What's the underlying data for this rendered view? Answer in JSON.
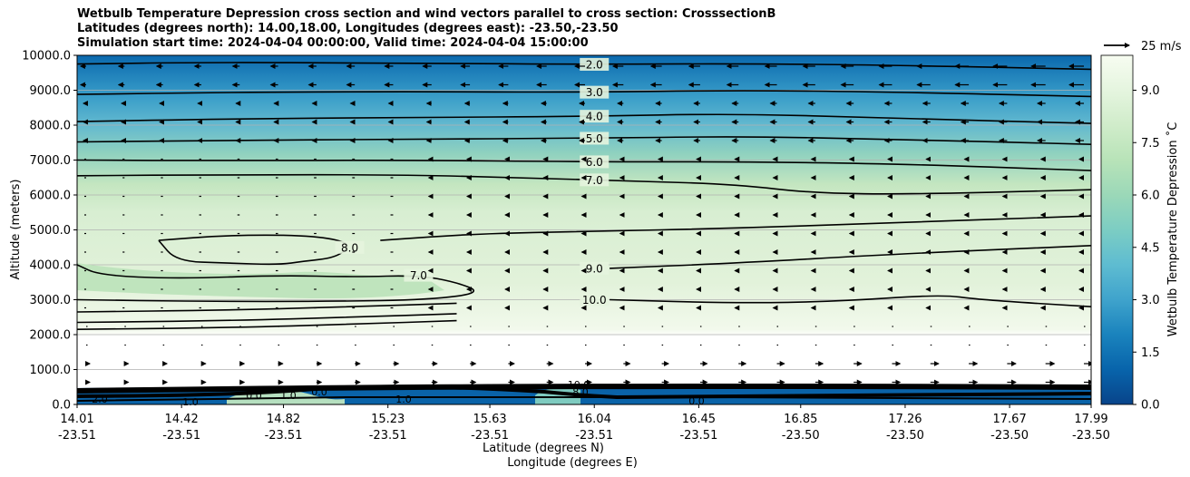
{
  "chart_data": {
    "type": "contour",
    "title_lines": [
      "Wetbulb Temperature Depression cross section and wind vectors parallel to cross section: CrosssectionB",
      "Latitudes (degrees north): 14.00,18.00, Longitudes (degrees east): -23.50,-23.50",
      "Simulation start time: 2024-04-04 00:00:00, Valid time: 2024-04-04 15:00:00"
    ],
    "ylabel": "Altitude (meters)",
    "xlabel_lat": "Latitude (degrees N)",
    "xlabel_lon": "Longitude (degrees E)",
    "ylim": [
      0,
      10000
    ],
    "y_ticks": [
      {
        "value": 0,
        "label": "0.0"
      },
      {
        "value": 1000,
        "label": "1000.0"
      },
      {
        "value": 2000,
        "label": "2000.0"
      },
      {
        "value": 3000,
        "label": "3000.0"
      },
      {
        "value": 4000,
        "label": "4000.0"
      },
      {
        "value": 5000,
        "label": "5000.0"
      },
      {
        "value": 6000,
        "label": "6000.0"
      },
      {
        "value": 7000,
        "label": "7000.0"
      },
      {
        "value": 8000,
        "label": "8000.0"
      },
      {
        "value": 9000,
        "label": "9000.0"
      },
      {
        "value": 10000,
        "label": "10000.0"
      }
    ],
    "xlim": [
      14.01,
      17.99
    ],
    "x_ticks": [
      {
        "lat": 14.01,
        "lat_label": "14.01",
        "lon_label": "-23.51"
      },
      {
        "lat": 14.42,
        "lat_label": "14.42",
        "lon_label": "-23.51"
      },
      {
        "lat": 14.82,
        "lat_label": "14.82",
        "lon_label": "-23.51"
      },
      {
        "lat": 15.23,
        "lat_label": "15.23",
        "lon_label": "-23.51"
      },
      {
        "lat": 15.63,
        "lat_label": "15.63",
        "lon_label": "-23.51"
      },
      {
        "lat": 16.04,
        "lat_label": "16.04",
        "lon_label": "-23.51"
      },
      {
        "lat": 16.45,
        "lat_label": "16.45",
        "lon_label": "-23.51"
      },
      {
        "lat": 16.85,
        "lat_label": "16.85",
        "lon_label": "-23.50"
      },
      {
        "lat": 17.26,
        "lat_label": "17.26",
        "lon_label": "-23.50"
      },
      {
        "lat": 17.67,
        "lat_label": "17.67",
        "lon_label": "-23.50"
      },
      {
        "lat": 17.99,
        "lat_label": "17.99",
        "lon_label": "-23.50"
      }
    ],
    "colorbar": {
      "label": "Wetbulb Temperature Depression ˚C",
      "range": [
        0,
        10
      ],
      "ticks": [
        {
          "value": 0,
          "label": "0.0"
        },
        {
          "value": 1.5,
          "label": "1.5"
        },
        {
          "value": 3,
          "label": "3.0"
        },
        {
          "value": 4.5,
          "label": "4.5"
        },
        {
          "value": 6,
          "label": "6.0"
        },
        {
          "value": 7.5,
          "label": "7.5"
        },
        {
          "value": 9,
          "label": "9.0"
        }
      ]
    },
    "wind_key": {
      "label": "25 m/s",
      "speed": 25
    },
    "contour_lines": [
      {
        "value": 2,
        "label": "2.0",
        "label_lat": 16.04,
        "points": [
          [
            14.01,
            9750
          ],
          [
            14.5,
            9800
          ],
          [
            15.2,
            9780
          ],
          [
            16.0,
            9740
          ],
          [
            16.6,
            9760
          ],
          [
            17.2,
            9720
          ],
          [
            17.99,
            9600
          ]
        ]
      },
      {
        "value": 3,
        "label": "3.0",
        "label_lat": 16.04,
        "points": [
          [
            14.01,
            8880
          ],
          [
            14.6,
            8940
          ],
          [
            15.3,
            8960
          ],
          [
            16.0,
            8940
          ],
          [
            16.6,
            9000
          ],
          [
            17.2,
            8950
          ],
          [
            17.99,
            8820
          ]
        ]
      },
      {
        "value": 4,
        "label": "4.0",
        "label_lat": 16.04,
        "points": [
          [
            14.01,
            8100
          ],
          [
            14.6,
            8180
          ],
          [
            15.3,
            8220
          ],
          [
            16.0,
            8250
          ],
          [
            16.6,
            8330
          ],
          [
            17.2,
            8200
          ],
          [
            17.99,
            8050
          ]
        ]
      },
      {
        "value": 5,
        "label": "5.0",
        "label_lat": 16.04,
        "points": [
          [
            14.01,
            7520
          ],
          [
            14.6,
            7560
          ],
          [
            15.3,
            7600
          ],
          [
            16.0,
            7620
          ],
          [
            16.6,
            7680
          ],
          [
            17.2,
            7600
          ],
          [
            17.99,
            7450
          ]
        ]
      },
      {
        "value": 6,
        "label": "6.0",
        "label_lat": 16.04,
        "points": [
          [
            14.01,
            7000
          ],
          [
            14.6,
            6980
          ],
          [
            15.3,
            7000
          ],
          [
            16.0,
            6950
          ],
          [
            16.6,
            6950
          ],
          [
            17.2,
            6900
          ],
          [
            17.99,
            6700
          ]
        ]
      },
      {
        "value": 7,
        "label": "7.0",
        "label_lat": 16.04,
        "points": [
          [
            14.01,
            6550
          ],
          [
            14.6,
            6580
          ],
          [
            15.3,
            6580
          ],
          [
            15.8,
            6480
          ],
          [
            16.2,
            6400
          ],
          [
            16.6,
            6300
          ],
          [
            16.9,
            6050
          ],
          [
            17.3,
            6020
          ],
          [
            17.99,
            6150
          ]
        ]
      },
      {
        "value": 8,
        "label": "8.0",
        "label_lat": 15.08,
        "points": [
          [
            14.33,
            4700
          ],
          [
            14.6,
            4850
          ],
          [
            14.9,
            4850
          ],
          [
            15.05,
            4700
          ],
          [
            15.08,
            4500
          ],
          [
            15.02,
            4200
          ],
          [
            14.9,
            4100
          ],
          [
            14.8,
            4000
          ],
          [
            14.6,
            4050
          ],
          [
            14.4,
            4100
          ],
          [
            14.33,
            4700
          ]
        ]
      },
      {
        "value": 8.5,
        "label": "",
        "label_lat": null,
        "points": [
          [
            15.2,
            4700
          ],
          [
            15.6,
            4900
          ],
          [
            16.0,
            4950
          ],
          [
            16.6,
            5050
          ],
          [
            17.2,
            5200
          ],
          [
            17.99,
            5400
          ]
        ]
      },
      {
        "value": 9,
        "label": "9.0",
        "label_lat": 16.04,
        "points": [
          [
            16.1,
            3900
          ],
          [
            16.6,
            4050
          ],
          [
            17.2,
            4300
          ],
          [
            17.99,
            4550
          ]
        ]
      },
      {
        "value": 10,
        "label": "10.0",
        "label_lat": 16.04,
        "points": [
          [
            16.1,
            3000
          ],
          [
            16.6,
            2900
          ],
          [
            17.0,
            2950
          ],
          [
            17.4,
            3150
          ],
          [
            17.55,
            3000
          ],
          [
            17.99,
            2800
          ]
        ]
      },
      {
        "value": 7,
        "label": "7.0",
        "label_lat": 15.35,
        "points": [
          [
            14.01,
            4000
          ],
          [
            14.1,
            3700
          ],
          [
            14.4,
            3600
          ],
          [
            14.8,
            3700
          ],
          [
            15.1,
            3650
          ],
          [
            15.35,
            3700
          ],
          [
            15.5,
            3500
          ],
          [
            15.6,
            3200
          ],
          [
            15.4,
            3000
          ],
          [
            15.0,
            2950
          ],
          [
            14.5,
            2950
          ],
          [
            14.01,
            3000
          ]
        ]
      },
      {
        "value": 6,
        "label": "",
        "label_lat": null,
        "points": [
          [
            14.01,
            2650
          ],
          [
            14.6,
            2700
          ],
          [
            15.1,
            2800
          ],
          [
            15.5,
            2900
          ]
        ]
      },
      {
        "value": 5,
        "label": "",
        "label_lat": null,
        "points": [
          [
            14.01,
            2350
          ],
          [
            14.6,
            2400
          ],
          [
            15.1,
            2500
          ],
          [
            15.5,
            2600
          ]
        ]
      },
      {
        "value": 4,
        "label": "",
        "label_lat": null,
        "points": [
          [
            14.01,
            2150
          ],
          [
            14.6,
            2200
          ],
          [
            15.1,
            2300
          ],
          [
            15.5,
            2400
          ]
        ]
      }
    ],
    "surface_contour_labels": [
      "2.0",
      "1.0",
      "0.0",
      "1.0",
      "0.0",
      "1.0",
      "10.0",
      "8.0",
      "0.0"
    ]
  }
}
